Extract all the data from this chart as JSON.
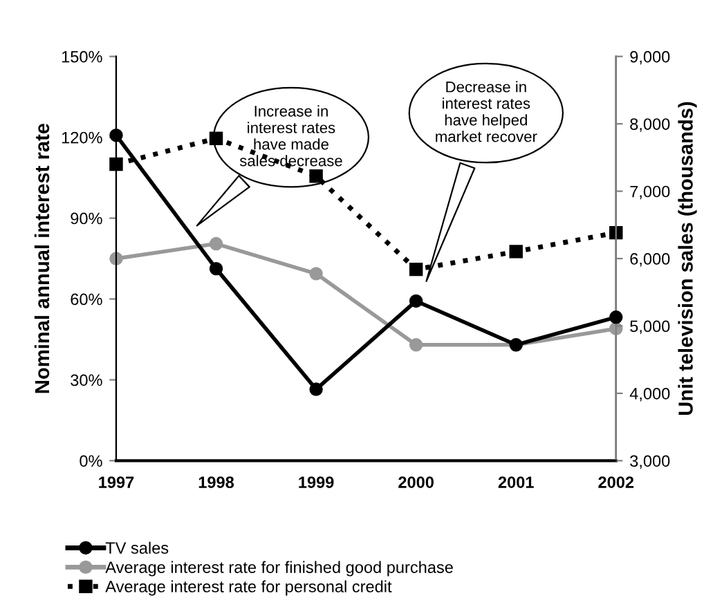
{
  "chart_data": {
    "type": "line",
    "x": [
      1997,
      1998,
      1999,
      2000,
      2001,
      2002
    ],
    "xlim": [
      1997,
      2002
    ],
    "xticks": [
      1997,
      1998,
      1999,
      2000,
      2001,
      2002
    ],
    "ylabel": "Nominal annual interest rate",
    "y2label": "Unit television sales (thousands)",
    "ylim": [
      0,
      150
    ],
    "yticks": [
      {
        "value": 0,
        "label": "0%"
      },
      {
        "value": 30,
        "label": "30%"
      },
      {
        "value": 60,
        "label": "60%"
      },
      {
        "value": 90,
        "label": "90%"
      },
      {
        "value": 120,
        "label": "120%"
      },
      {
        "value": 150,
        "label": "150%"
      }
    ],
    "y2lim": [
      3000,
      9000
    ],
    "y2ticks": [
      {
        "value": 3000,
        "label": "3,000"
      },
      {
        "value": 4000,
        "label": "4,000"
      },
      {
        "value": 5000,
        "label": "5,000"
      },
      {
        "value": 6000,
        "label": "6,000"
      },
      {
        "value": 7000,
        "label": "7,000"
      },
      {
        "value": 8000,
        "label": "8,000"
      },
      {
        "value": 9000,
        "label": "9,000"
      }
    ],
    "series": [
      {
        "name": "TV sales",
        "color": "#000000",
        "axis": "y2",
        "marker": "circle",
        "line_style": "solid",
        "values": [
          7830,
          5850,
          4060,
          5370,
          4720,
          5130
        ]
      },
      {
        "name": "Average interest rate for finished good purchase",
        "color": "#999999",
        "marker": "circle",
        "line_style": "solid",
        "values": [
          75,
          80.5,
          69.4,
          43,
          43,
          49
        ]
      },
      {
        "name": "Average interest rate for personal credit",
        "color": "#000000",
        "marker": "square",
        "line_style": "dotted",
        "values": [
          110,
          119.6,
          105.6,
          71,
          77.6,
          84.6
        ]
      }
    ],
    "annotations": [
      "Increase in\ninterest rates\nhave made\nsales decrease",
      "Decrease in\ninterest rates\nhave helped\nmarket recover"
    ],
    "grid": false,
    "legend": "bottom"
  }
}
